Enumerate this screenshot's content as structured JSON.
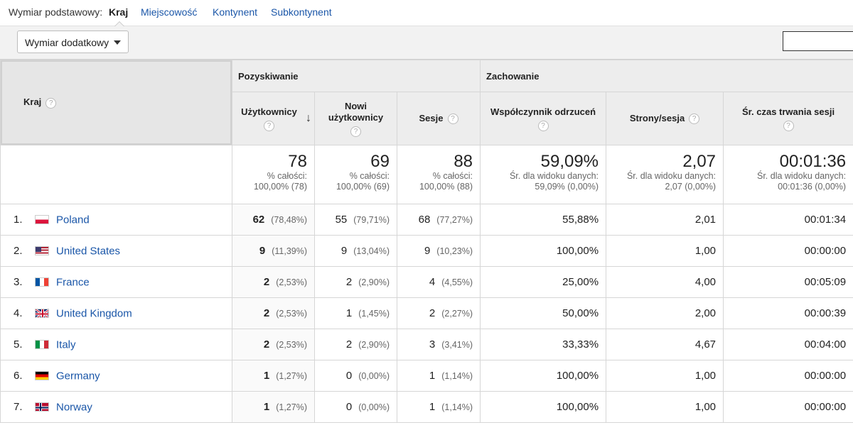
{
  "primary_dimension": {
    "label": "Wymiar podstawowy:",
    "options": [
      "Kraj",
      "Miejscowość",
      "Kontynent",
      "Subkontynent"
    ],
    "active": "Kraj"
  },
  "toolbar": {
    "secondary_dimension_label": "Wymiar dodatkowy",
    "search_value": ""
  },
  "table": {
    "dimension_header": "Kraj",
    "groups": {
      "acquisition": "Pozyskiwanie",
      "behavior": "Zachowanie"
    },
    "columns": {
      "users": "Użytkownicy",
      "new_users_line1": "Nowi",
      "new_users_line2": "użytkownicy",
      "sessions": "Sesje",
      "bounce_rate": "Współczynnik odrzuceń",
      "pages_per_session": "Strony/sesja",
      "avg_session_duration": "Śr. czas trwania sesji"
    },
    "sort_icon": "arrow-down-icon",
    "help_icon": "?",
    "totals": {
      "users": {
        "value": "78",
        "line1": "% całości:",
        "line2": "100,00% (78)"
      },
      "new_users": {
        "value": "69",
        "line1": "% całości:",
        "line2": "100,00% (69)"
      },
      "sessions": {
        "value": "88",
        "line1": "% całości:",
        "line2": "100,00% (88)"
      },
      "bounce_rate": {
        "value": "59,09%",
        "line1": "Śr. dla widoku danych:",
        "line2": "59,09% (0,00%)"
      },
      "pages_per_session": {
        "value": "2,07",
        "line1": "Śr. dla widoku danych:",
        "line2": "2,07 (0,00%)"
      },
      "avg_session_duration": {
        "value": "00:01:36",
        "line1": "Śr. dla widoku danych:",
        "line2": "00:01:36 (0,00%)"
      }
    },
    "rows": [
      {
        "index": "1.",
        "flag": "flag-poland-icon",
        "country": "Poland",
        "users": "62",
        "users_pct": "(78,48%)",
        "new_users": "55",
        "new_users_pct": "(79,71%)",
        "sessions": "68",
        "sessions_pct": "(77,27%)",
        "bounce_rate": "55,88%",
        "pages_per_session": "2,01",
        "avg_session_duration": "00:01:34"
      },
      {
        "index": "2.",
        "flag": "flag-united-states-icon",
        "country": "United States",
        "users": "9",
        "users_pct": "(11,39%)",
        "new_users": "9",
        "new_users_pct": "(13,04%)",
        "sessions": "9",
        "sessions_pct": "(10,23%)",
        "bounce_rate": "100,00%",
        "pages_per_session": "1,00",
        "avg_session_duration": "00:00:00"
      },
      {
        "index": "3.",
        "flag": "flag-france-icon",
        "country": "France",
        "users": "2",
        "users_pct": "(2,53%)",
        "new_users": "2",
        "new_users_pct": "(2,90%)",
        "sessions": "4",
        "sessions_pct": "(4,55%)",
        "bounce_rate": "25,00%",
        "pages_per_session": "4,00",
        "avg_session_duration": "00:05:09"
      },
      {
        "index": "4.",
        "flag": "flag-united-kingdom-icon",
        "country": "United Kingdom",
        "users": "2",
        "users_pct": "(2,53%)",
        "new_users": "1",
        "new_users_pct": "(1,45%)",
        "sessions": "2",
        "sessions_pct": "(2,27%)",
        "bounce_rate": "50,00%",
        "pages_per_session": "2,00",
        "avg_session_duration": "00:00:39"
      },
      {
        "index": "5.",
        "flag": "flag-italy-icon",
        "country": "Italy",
        "users": "2",
        "users_pct": "(2,53%)",
        "new_users": "2",
        "new_users_pct": "(2,90%)",
        "sessions": "3",
        "sessions_pct": "(3,41%)",
        "bounce_rate": "33,33%",
        "pages_per_session": "4,67",
        "avg_session_duration": "00:04:00"
      },
      {
        "index": "6.",
        "flag": "flag-germany-icon",
        "country": "Germany",
        "users": "1",
        "users_pct": "(1,27%)",
        "new_users": "0",
        "new_users_pct": "(0,00%)",
        "sessions": "1",
        "sessions_pct": "(1,14%)",
        "bounce_rate": "100,00%",
        "pages_per_session": "1,00",
        "avg_session_duration": "00:00:00"
      },
      {
        "index": "7.",
        "flag": "flag-norway-icon",
        "country": "Norway",
        "users": "1",
        "users_pct": "(1,27%)",
        "new_users": "0",
        "new_users_pct": "(0,00%)",
        "sessions": "1",
        "sessions_pct": "(1,14%)",
        "bounce_rate": "100,00%",
        "pages_per_session": "1,00",
        "avg_session_duration": "00:00:00"
      }
    ]
  },
  "colors": {
    "link": "#1a56a8",
    "header_bg": "#ededed",
    "toolbar_bg": "#f2f2f2"
  }
}
